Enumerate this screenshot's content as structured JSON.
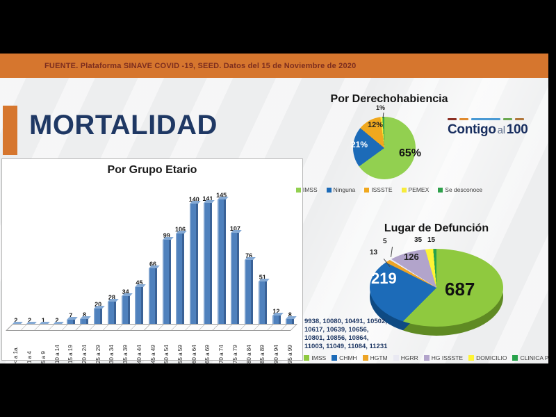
{
  "banner": {
    "text": "FUENTE. Plataforma SINAVE COVID -19, SEED. Datos del 15 de Noviembre de 2020"
  },
  "slide": {
    "title": "MORTALIDAD"
  },
  "logo": {
    "contigo": "Contigo",
    "al": "al",
    "hundred": "100",
    "dash_colors": [
      "#8c2f23",
      "#e08a2e",
      "#4a9ad4",
      "#6aa84f",
      "#b0763b"
    ]
  },
  "footnote_numbers": [
    "9938, 10080, 10491, 10502,",
    "10617, 10639, 10656,",
    "10801, 10856, 10864,",
    "11003, 11049, 11084, 11231"
  ],
  "chart_data": [
    {
      "type": "bar",
      "title": "Por Grupo Etario",
      "categories": [
        "< a 1a.",
        "1 a 4",
        "5 a 9",
        "10 a 14",
        "15 a 19",
        "20 a 24",
        "25 a 29",
        "30 a 34",
        "35 a 39",
        "40 a 44",
        "45 a 49",
        "50 a 54",
        "55 a 59",
        "60 a 64",
        "65 a 69",
        "70 a 74",
        "75 a 79",
        "80 a 84",
        "85 a 89",
        "90 a 94",
        "95 a 99"
      ],
      "values": [
        2,
        2,
        1,
        2,
        7,
        8,
        20,
        28,
        34,
        45,
        66,
        99,
        106,
        140,
        141,
        145,
        107,
        76,
        51,
        12,
        8
      ],
      "bar_color": "#4f81bd",
      "ylim": [
        0,
        145
      ],
      "data_labels": true,
      "grid": false,
      "legend": "none",
      "style": "3d"
    },
    {
      "type": "pie",
      "title": "Por Derechohabiencia",
      "legend_position": "bottom",
      "slices": [
        {
          "name": "IMSS",
          "value": 65,
          "label": "65%",
          "color": "#92d050"
        },
        {
          "name": "Ninguna",
          "value": 21,
          "label": "21%",
          "color": "#1c6bb8"
        },
        {
          "name": "ISSSTE",
          "value": 12,
          "label": "12%",
          "color": "#f0a81e"
        },
        {
          "name": "PEMEX",
          "value": 1,
          "label": "1%",
          "color": "#f7ec3b"
        },
        {
          "name": "Se desconoce",
          "value": 1,
          "label": "",
          "color": "#2fa14c"
        }
      ]
    },
    {
      "type": "pie",
      "title": "Lugar de Defunción",
      "style": "3d",
      "legend_position": "bottom",
      "slices": [
        {
          "name": "IMSS",
          "value": 687,
          "label": "687",
          "color": "#8fc93f"
        },
        {
          "name": "CHMH",
          "value": 219,
          "label": "219",
          "color": "#1c6bb8"
        },
        {
          "name": "HGTM",
          "value": 13,
          "label": "13",
          "color": "#eda426"
        },
        {
          "name": "HGRR",
          "value": 5,
          "label": "5",
          "color": "#e9e9f2"
        },
        {
          "name": "HG ISSSTE",
          "value": 126,
          "label": "126",
          "color": "#b2a4cb"
        },
        {
          "name": "DOMICILIO",
          "value": 35,
          "label": "35",
          "color": "#fef435"
        },
        {
          "name": "CLINICA PRIVADA",
          "value": 15,
          "label": "15",
          "color": "#27a24b"
        }
      ]
    }
  ]
}
